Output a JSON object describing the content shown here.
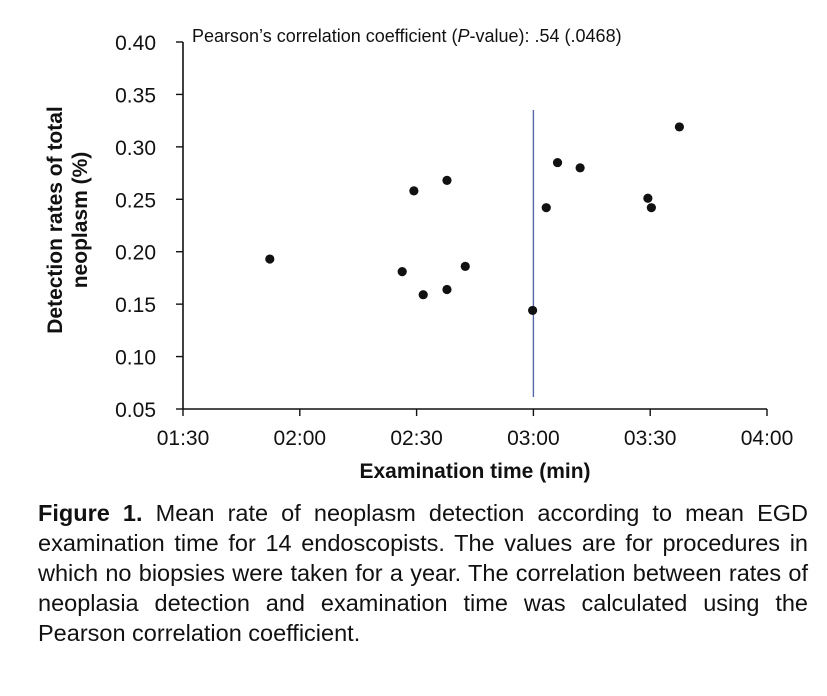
{
  "chart_data": {
    "type": "scatter",
    "title": "",
    "annotation": {
      "prefix": "Pearson’s correlation coefficient (",
      "italic": "P",
      "suffix": "-value): .54 (.0468)"
    },
    "xlabel": "Examination time (min)",
    "ylabel_line1": "Detection rates of total",
    "ylabel_line2": "neoplasm (%)",
    "x_unit": "minutes",
    "xlim": [
      90,
      240
    ],
    "ylim": [
      0.05,
      0.4
    ],
    "x_ticks": [
      {
        "value": 90,
        "label": "01:30"
      },
      {
        "value": 120,
        "label": "02:00"
      },
      {
        "value": 150,
        "label": "02:30"
      },
      {
        "value": 180,
        "label": "03:00"
      },
      {
        "value": 210,
        "label": "03:30"
      },
      {
        "value": 240,
        "label": "04:00"
      }
    ],
    "y_ticks": [
      {
        "value": 0.05,
        "label": "0.05"
      },
      {
        "value": 0.1,
        "label": "0.10"
      },
      {
        "value": 0.15,
        "label": "0.15"
      },
      {
        "value": 0.2,
        "label": "0.20"
      },
      {
        "value": 0.25,
        "label": "0.25"
      },
      {
        "value": 0.3,
        "label": "0.30"
      },
      {
        "value": 0.35,
        "label": "0.35"
      },
      {
        "value": 0.4,
        "label": "0.40"
      }
    ],
    "vertical_line_x": 180,
    "grid": false,
    "legend": "none",
    "series": [
      {
        "points": [
          {
            "x": 112.3,
            "y": 0.193
          },
          {
            "x": 146.3,
            "y": 0.181
          },
          {
            "x": 149.3,
            "y": 0.258
          },
          {
            "x": 151.7,
            "y": 0.159
          },
          {
            "x": 157.8,
            "y": 0.164
          },
          {
            "x": 157.8,
            "y": 0.268
          },
          {
            "x": 162.5,
            "y": 0.186
          },
          {
            "x": 179.8,
            "y": 0.144
          },
          {
            "x": 183.3,
            "y": 0.242
          },
          {
            "x": 186.2,
            "y": 0.285
          },
          {
            "x": 192.0,
            "y": 0.28
          },
          {
            "x": 209.4,
            "y": 0.251
          },
          {
            "x": 210.3,
            "y": 0.242
          },
          {
            "x": 217.5,
            "y": 0.319
          }
        ]
      }
    ],
    "colors": {
      "points": "#111111",
      "axis": "#111111",
      "reference_line": "#5566aa"
    }
  },
  "caption": {
    "label": "Figure 1.",
    "text": "Mean rate of neoplasm detection according to mean EGD examination time for 14 endoscopists. The values are for procedures in which no biopsies were taken for a year. The correlation between rates of neoplasia detection and examination time was calculated using the Pearson correlation coefficient."
  }
}
